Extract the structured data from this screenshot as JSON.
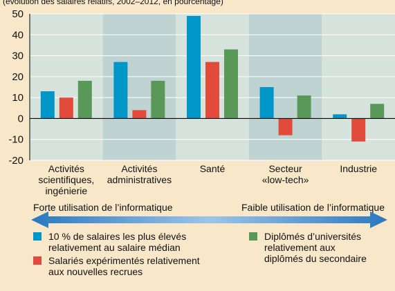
{
  "chart_data": {
    "type": "bar",
    "subtitle": "(évolution des salaires relatifs, 2002–2012, en pourcentage)",
    "categories": [
      "Activités\nscientifiques,\ningénierie",
      "Activités\nadministratives",
      "Santé",
      "Secteur\n«low-tech»",
      "Industrie"
    ],
    "series": [
      {
        "name": "10 % de salaires les plus élevés\nrelativement au salaire médian",
        "color": "#0096c8",
        "values": [
          13,
          27,
          49,
          15,
          2
        ]
      },
      {
        "name": "Salariés expérimentés relativement\naux nouvelles recrues",
        "color": "#e24b3b",
        "values": [
          10,
          4,
          27,
          -8,
          -11
        ]
      },
      {
        "name": "Diplômés d’universités\nrelativement aux\ndiplômés du secondaire",
        "color": "#5a985a",
        "values": [
          18,
          18,
          33,
          11,
          7
        ]
      }
    ],
    "ylim": [
      -20,
      50
    ],
    "yticks": [
      -20,
      -10,
      0,
      10,
      20,
      30,
      40,
      50
    ],
    "grid": true,
    "annotations": [
      "Forte utilisation de l’informatique",
      "Faible utilisation de l’informatique"
    ]
  }
}
